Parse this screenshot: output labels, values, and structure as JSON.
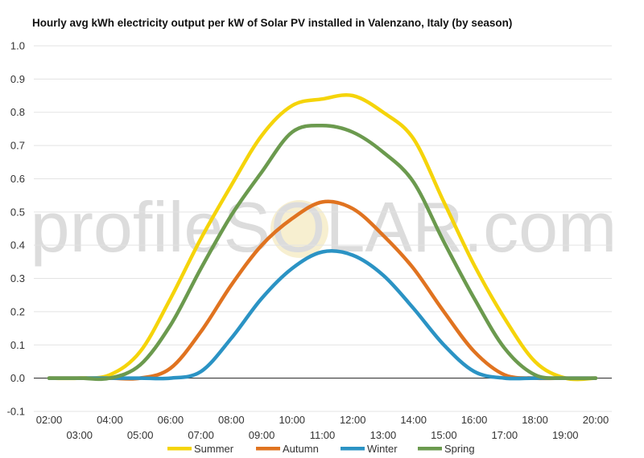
{
  "chart_data": {
    "type": "line",
    "title": "Hourly avg kWh electricity output per kW of Solar PV installed in Valenzano, Italy (by season)",
    "xlabel": "",
    "ylabel": "",
    "ylim": [
      -0.1,
      1.0
    ],
    "yticks": [
      "1.0",
      "0.9",
      "0.8",
      "0.7",
      "0.6",
      "0.5",
      "0.4",
      "0.3",
      "0.2",
      "0.1",
      "0.0",
      "-0.1"
    ],
    "ytick_values": [
      1.0,
      0.9,
      0.8,
      0.7,
      0.6,
      0.5,
      0.4,
      0.3,
      0.2,
      0.1,
      0.0,
      -0.1
    ],
    "x": [
      "02:00",
      "03:00",
      "04:00",
      "05:00",
      "06:00",
      "07:00",
      "08:00",
      "09:00",
      "10:00",
      "11:00",
      "12:00",
      "13:00",
      "14:00",
      "15:00",
      "16:00",
      "17:00",
      "18:00",
      "19:00",
      "20:00"
    ],
    "grid": "horizontal",
    "legend_position": "bottom",
    "series": [
      {
        "name": "Summer",
        "color": "#f5d40a",
        "values": [
          0.0,
          0.0,
          0.01,
          0.08,
          0.24,
          0.42,
          0.58,
          0.73,
          0.82,
          0.84,
          0.85,
          0.8,
          0.72,
          0.53,
          0.34,
          0.18,
          0.05,
          0.0,
          0.0
        ]
      },
      {
        "name": "Autumn",
        "color": "#e07320",
        "values": [
          0.0,
          0.0,
          0.0,
          0.0,
          0.03,
          0.14,
          0.28,
          0.4,
          0.48,
          0.53,
          0.51,
          0.43,
          0.33,
          0.2,
          0.08,
          0.01,
          0.0,
          0.0,
          0.0
        ]
      },
      {
        "name": "Winter",
        "color": "#2b93c4",
        "values": [
          0.0,
          0.0,
          0.0,
          0.0,
          0.0,
          0.02,
          0.12,
          0.24,
          0.33,
          0.38,
          0.37,
          0.31,
          0.21,
          0.1,
          0.02,
          0.0,
          0.0,
          0.0,
          0.0
        ]
      },
      {
        "name": "Spring",
        "color": "#6b9a4e",
        "values": [
          0.0,
          0.0,
          0.0,
          0.04,
          0.16,
          0.33,
          0.49,
          0.62,
          0.74,
          0.76,
          0.74,
          0.68,
          0.59,
          0.41,
          0.24,
          0.09,
          0.01,
          0.0,
          0.0
        ]
      }
    ],
    "watermark": "profileSOLAR.com"
  }
}
